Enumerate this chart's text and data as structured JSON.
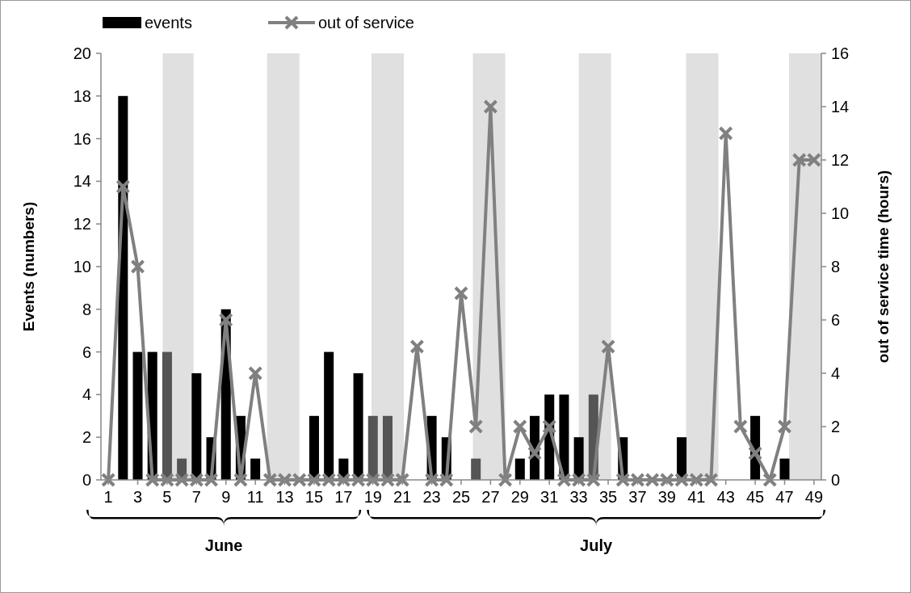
{
  "chart_data": {
    "type": "bar",
    "ylabel": "Events (numbers)",
    "y2label": "out of service time (hours)",
    "x": [
      1,
      2,
      3,
      4,
      5,
      6,
      7,
      8,
      9,
      10,
      11,
      12,
      13,
      14,
      15,
      16,
      17,
      18,
      19,
      20,
      21,
      22,
      23,
      24,
      25,
      26,
      27,
      28,
      29,
      30,
      31,
      32,
      33,
      34,
      35,
      36,
      37,
      38,
      39,
      40,
      41,
      42,
      43,
      44,
      45,
      46,
      47,
      48,
      49
    ],
    "xlim": [
      0.5,
      49.5
    ],
    "xticks": [
      1,
      3,
      5,
      7,
      9,
      11,
      13,
      15,
      17,
      19,
      21,
      23,
      25,
      27,
      29,
      31,
      33,
      35,
      37,
      39,
      41,
      43,
      45,
      47,
      49
    ],
    "ylim": [
      0,
      20
    ],
    "yticks": [
      0,
      2,
      4,
      6,
      8,
      10,
      12,
      14,
      16,
      18,
      20
    ],
    "y2lim": [
      0,
      16
    ],
    "y2ticks": [
      0,
      2,
      4,
      6,
      8,
      10,
      12,
      14,
      16
    ],
    "series": [
      {
        "name": "events",
        "color": "#000000",
        "colors": [
          "#000000",
          "#000000",
          "#000000",
          "#000000",
          "#555555",
          "#555555",
          "#000000",
          "#000000",
          "#000000",
          "#000000",
          "#000000",
          "#000000",
          "#000000",
          "#000000",
          "#000000",
          "#000000",
          "#000000",
          "#000000",
          "#555555",
          "#555555",
          "#000000",
          "#000000",
          "#000000",
          "#000000",
          "#000000",
          "#555555",
          "#000000",
          "#000000",
          "#000000",
          "#000000",
          "#000000",
          "#000000",
          "#000000",
          "#555555",
          "#000000",
          "#000000",
          "#000000",
          "#000000",
          "#000000",
          "#000000",
          "#000000",
          "#000000",
          "#000000",
          "#000000",
          "#000000",
          "#000000",
          "#000000",
          "#000000",
          "#000000"
        ],
        "values": [
          0,
          18,
          6,
          6,
          6,
          1,
          5,
          2,
          8,
          3,
          1,
          0,
          0,
          0,
          3,
          6,
          1,
          5,
          3,
          3,
          0,
          0,
          3,
          2,
          0,
          1,
          0,
          0,
          1,
          3,
          4,
          4,
          2,
          4,
          0,
          2,
          0,
          0,
          0,
          2,
          0,
          0,
          0,
          0,
          3,
          0,
          1,
          0,
          0
        ]
      },
      {
        "name": "out of service",
        "type": "line",
        "axis": "y2",
        "color": "#808080",
        "values": [
          0,
          11,
          8,
          0,
          0,
          0,
          0,
          0,
          6,
          0,
          4,
          0,
          0,
          0,
          0,
          0,
          0,
          0,
          0,
          0,
          0,
          5,
          0,
          0,
          7,
          2,
          14,
          0,
          2,
          1,
          2,
          0,
          0,
          0,
          5,
          0,
          0,
          0,
          0,
          0,
          0,
          0,
          13,
          2,
          1,
          0,
          2,
          12,
          12
        ]
      }
    ],
    "bands": [
      {
        "axis": "x",
        "from": 4.7,
        "to": 6.8,
        "color": "#e0e0e0"
      },
      {
        "axis": "x",
        "from": 11.8,
        "to": 14,
        "color": "#e0e0e0"
      },
      {
        "axis": "x",
        "from": 18.9,
        "to": 21.1,
        "color": "#e0e0e0"
      },
      {
        "axis": "x",
        "from": 25.8,
        "to": 28,
        "color": "#e0e0e0"
      },
      {
        "axis": "x",
        "from": 33,
        "to": 35.2,
        "color": "#e0e0e0"
      },
      {
        "axis": "x",
        "from": 40.3,
        "to": 42.5,
        "color": "#e0e0e0"
      },
      {
        "axis": "x",
        "from": 47.3,
        "to": 49.5,
        "color": "#e0e0e0"
      }
    ],
    "annotations": [
      "June",
      "July"
    ],
    "marker": "cross",
    "legend": "top left",
    "grid": false
  }
}
